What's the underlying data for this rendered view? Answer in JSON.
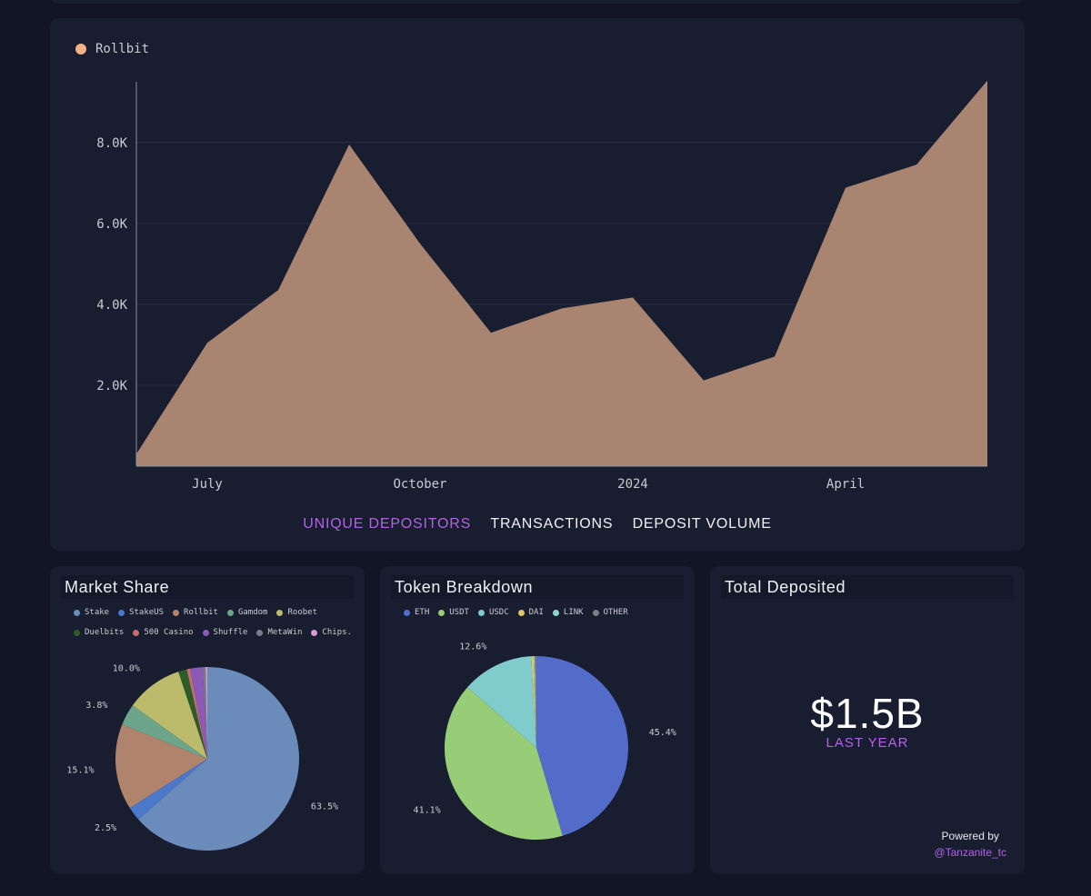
{
  "tabs": [
    {
      "label": "UNIQUE DEPOSITORS",
      "active": true
    },
    {
      "label": "TRANSACTIONS",
      "active": false
    },
    {
      "label": "DEPOSIT VOLUME",
      "active": false
    }
  ],
  "market_share": {
    "title": "Market Share"
  },
  "token_breakdown": {
    "title": "Token Breakdown"
  },
  "total": {
    "title": "Total Deposited",
    "value": "$1.5B",
    "sub": "LAST YEAR",
    "powered_by": "Powered by",
    "handle": "@Tanzanite_tc"
  },
  "colors": {
    "accent": "#b562e6",
    "area": "#a98470",
    "bg": "#121624",
    "card": "#181d2f"
  },
  "chart_data": [
    {
      "type": "area",
      "series": [
        {
          "name": "Rollbit",
          "color": "#f3b084",
          "values": [
            300,
            3050,
            4350,
            7950,
            5500,
            3300,
            3900,
            4170,
            2120,
            2710,
            6880,
            7450,
            9530
          ]
        }
      ],
      "x": [
        "2023-06",
        "2023-07",
        "2023-08",
        "2023-09",
        "2023-10",
        "2023-11",
        "2023-12",
        "2024-01",
        "2024-02",
        "2024-03",
        "2024-04",
        "2024-05",
        "2024-06"
      ],
      "x_tick_labels": [
        "July",
        "October",
        "2024",
        "April"
      ],
      "x_tick_positions": [
        "2023-07",
        "2023-10",
        "2024-01",
        "2024-04"
      ],
      "y_tick_labels": [
        "2.0K",
        "4.0K",
        "6.0K",
        "8.0K"
      ],
      "y_ticks": [
        2000,
        4000,
        6000,
        8000
      ],
      "ylim": [
        0,
        9500
      ],
      "grid": true,
      "legend": "top-left"
    },
    {
      "type": "pie",
      "title": "Market Share",
      "labels": [
        "Stake",
        "StakeUS",
        "Rollbit",
        "Gamdom",
        "Roobet",
        "Duelbits",
        "500 Casino",
        "Shuffle",
        "MetaWin",
        "Chips."
      ],
      "colors": [
        "#6b8bba",
        "#4b78c8",
        "#b0836d",
        "#6da58a",
        "#bcbb6c",
        "#2d5c2a",
        "#c26f6a",
        "#8b5ab8",
        "#777c84",
        "#d69ad6"
      ],
      "values": [
        63.5,
        2.5,
        15.1,
        3.8,
        10.0,
        1.5,
        0.6,
        2.2,
        0.5,
        0.3
      ],
      "data_labels": [
        "63.5%",
        "2.5%",
        "15.1%",
        "3.8%",
        "10.0%",
        "",
        "",
        "",
        "",
        ""
      ]
    },
    {
      "type": "pie",
      "title": "Token Breakdown",
      "labels": [
        "ETH",
        "USDT",
        "USDC",
        "DAI",
        "LINK",
        "OTHER"
      ],
      "colors": [
        "#546cc9",
        "#97cd77",
        "#80cbcc",
        "#e0c56a",
        "#8fd6c8",
        "#7a7f86"
      ],
      "values": [
        45.4,
        41.1,
        12.6,
        0.4,
        0.2,
        0.3
      ],
      "data_labels": [
        "45.4%",
        "41.1%",
        "12.6%",
        "",
        "",
        ""
      ]
    }
  ]
}
